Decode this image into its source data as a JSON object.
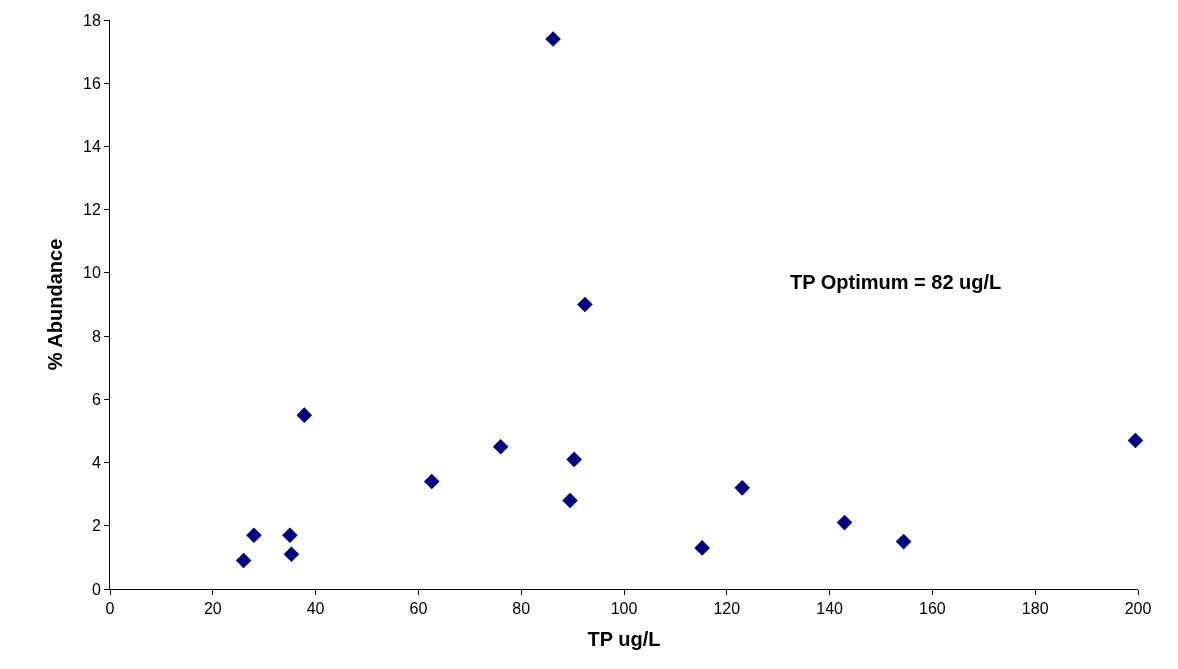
{
  "chart_data": {
    "type": "scatter",
    "xlabel": "TP ug/L",
    "ylabel": "% Abundance",
    "x": [
      26,
      28,
      35,
      35.3,
      37.8,
      62.6,
      76,
      86.2,
      89.5,
      90.3,
      92.4,
      115.2,
      123,
      142.9,
      154.4,
      199.5
    ],
    "series": [
      {
        "color": "#000080",
        "values": [
          0.9,
          1.7,
          1.7,
          1.1,
          5.5,
          3.4,
          4.5,
          17.4,
          2.8,
          4.1,
          9.0,
          1.3,
          3.2,
          2.1,
          1.5,
          4.7
        ]
      }
    ],
    "xlim": [
      0,
      200
    ],
    "xticks": [
      0,
      20,
      40,
      60,
      80,
      100,
      120,
      140,
      160,
      180,
      200
    ],
    "ylim": [
      0,
      18
    ],
    "yticks": [
      0,
      2,
      4,
      6,
      8,
      10,
      12,
      14,
      16,
      18
    ],
    "marker": "diamond",
    "grid": false,
    "legend": false,
    "annotations": [
      "TP Optimum = 82 ug/L"
    ]
  }
}
